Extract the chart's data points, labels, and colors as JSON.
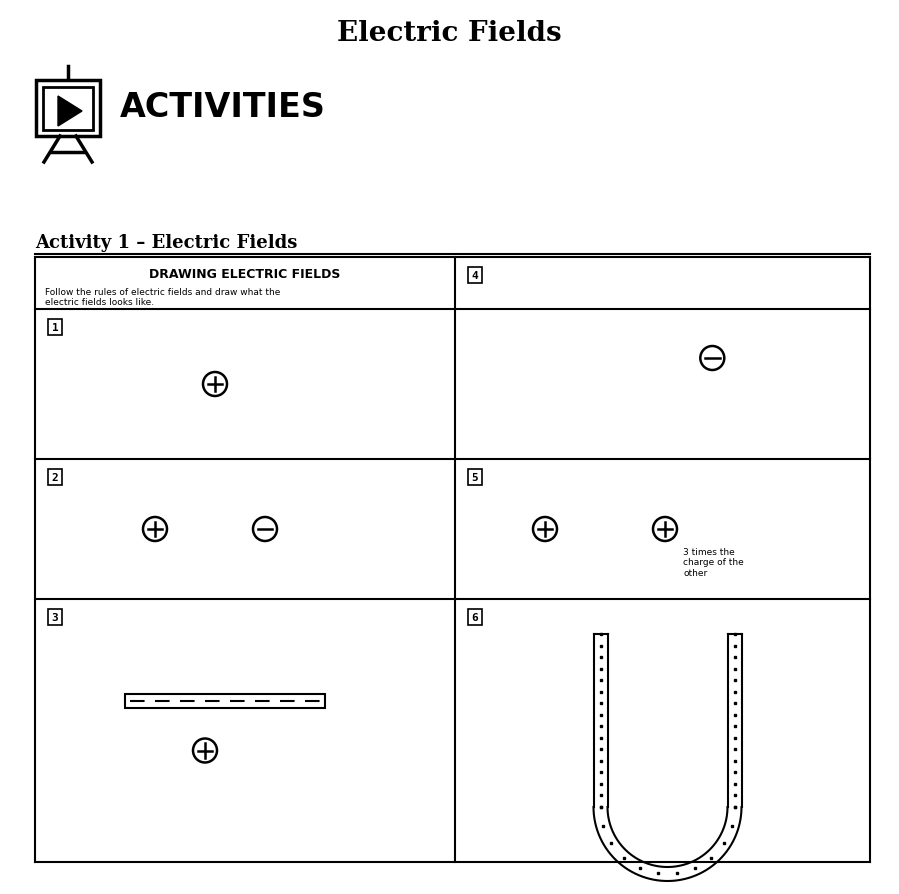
{
  "title": "Electric Fields",
  "activities_label": "ACTIVITIES",
  "activity_label": "Activity 1 – Electric Fields",
  "drawing_title": "DRAWING ELECTRIC FIELDS",
  "drawing_subtitle": "Follow the rules of electric fields and draw what the\nelectric fields looks like.",
  "bg_color": "#ffffff",
  "text_color": "#000000",
  "note_text": "3 times the\ncharge of the\nother",
  "fig_width": 8.99,
  "fig_height": 8.95,
  "dpi": 100
}
